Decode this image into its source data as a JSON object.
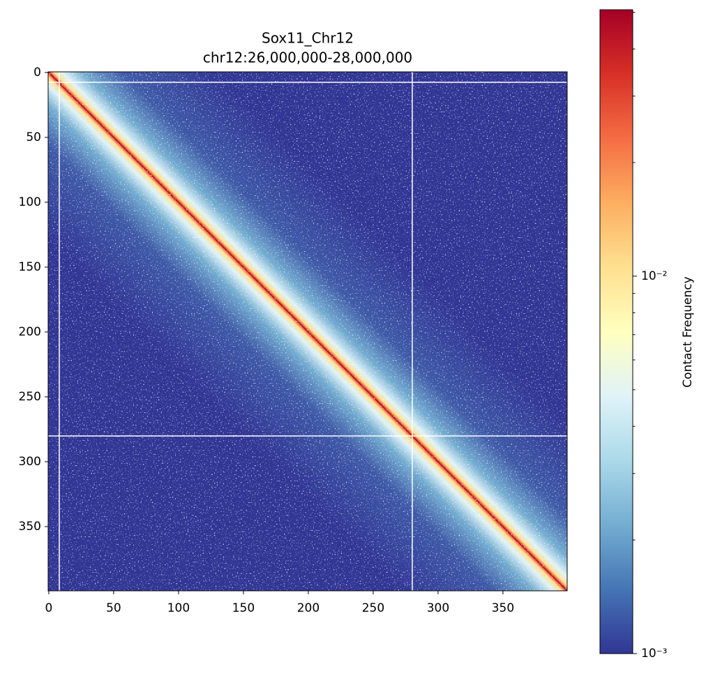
{
  "chart_data": {
    "type": "heatmap",
    "title": "Sox11_Chr12",
    "subtitle": "chr12:26,000,000-28,000,000",
    "xlim": [
      -0.5,
      399.5
    ],
    "ylim": [
      399.5,
      -0.5
    ],
    "xticks": [
      0,
      50,
      100,
      150,
      200,
      250,
      300,
      350
    ],
    "yticks": [
      0,
      50,
      100,
      150,
      200,
      250,
      300,
      350
    ],
    "colormap": "RdYlBu_r",
    "colorbar": {
      "label": "Contact Frequency",
      "scale": "log",
      "clim": [
        0.001,
        0.0508
      ],
      "ticks": [
        {
          "value": 0.001,
          "label": "10⁻³"
        },
        {
          "value": 0.01,
          "label": "10⁻²"
        }
      ],
      "minor_ticks": [
        0.002,
        0.003,
        0.004,
        0.005,
        0.006,
        0.007,
        0.008,
        0.009,
        0.02,
        0.03,
        0.04,
        0.05
      ]
    }
  }
}
